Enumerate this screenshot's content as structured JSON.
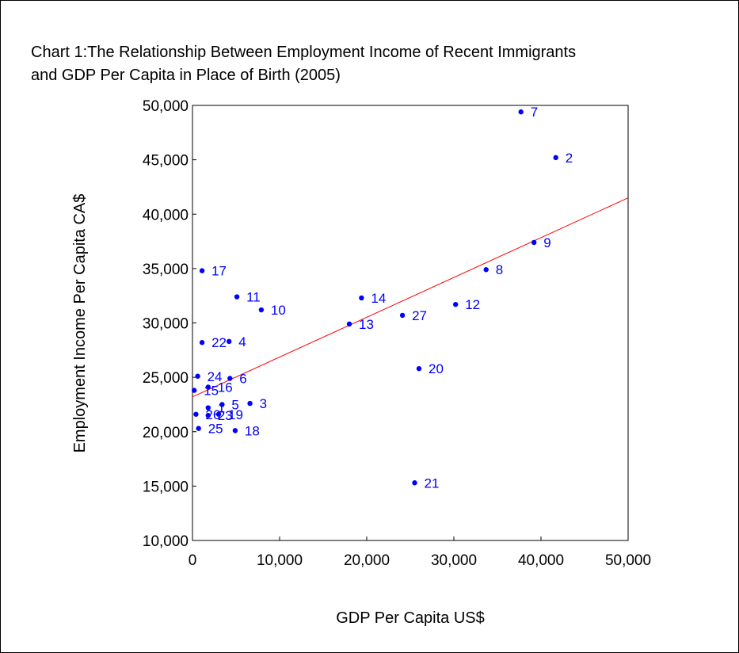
{
  "chart_data": {
    "type": "scatter",
    "title_line1": "Chart 1:The Relationship Between Employment Income of Recent Immigrants",
    "title_line2": "and GDP Per Capita in Place of Birth (2005)",
    "xlabel": "GDP Per Capita US$",
    "ylabel": "Employment Income Per Capita CA$",
    "xlim": [
      0,
      50000
    ],
    "ylim": [
      10000,
      50000
    ],
    "xticks": [
      "0",
      "10,000",
      "20,000",
      "30,000",
      "40,000",
      "50,000"
    ],
    "yticks": [
      "10,000",
      "15,000",
      "20,000",
      "25,000",
      "30,000",
      "35,000",
      "40,000",
      "45,000",
      "50,000"
    ],
    "grid": false,
    "point_color": "#0000ff",
    "label_color": "#0000ff",
    "fit_line_color": "#ff0000",
    "fit_line": {
      "x": [
        0,
        50000
      ],
      "y": [
        23200,
        41500
      ]
    },
    "points": [
      {
        "label": "7",
        "x": 37700,
        "y": 49400
      },
      {
        "label": "2",
        "x": 41700,
        "y": 45200
      },
      {
        "label": "9",
        "x": 39200,
        "y": 37400
      },
      {
        "label": "8",
        "x": 33700,
        "y": 34900
      },
      {
        "label": "17",
        "x": 1100,
        "y": 34800
      },
      {
        "label": "11",
        "x": 5100,
        "y": 32400
      },
      {
        "label": "14",
        "x": 19400,
        "y": 32300
      },
      {
        "label": "12",
        "x": 30200,
        "y": 31700
      },
      {
        "label": "10",
        "x": 7900,
        "y": 31200
      },
      {
        "label": "27",
        "x": 24100,
        "y": 30700
      },
      {
        "label": "13",
        "x": 18000,
        "y": 29900
      },
      {
        "label": "22",
        "x": 1100,
        "y": 28200
      },
      {
        "label": "4",
        "x": 4200,
        "y": 28300
      },
      {
        "label": "20",
        "x": 26000,
        "y": 25800
      },
      {
        "label": "24",
        "x": 600,
        "y": 25100
      },
      {
        "label": "6",
        "x": 4300,
        "y": 24900
      },
      {
        "label": "15",
        "x": 200,
        "y": 23800
      },
      {
        "label": "16",
        "x": 1800,
        "y": 24100
      },
      {
        "label": "3",
        "x": 6600,
        "y": 22600
      },
      {
        "label": "5",
        "x": 3400,
        "y": 22500
      },
      {
        "label": "1",
        "x": 1800,
        "y": 22200
      },
      {
        "label": "19",
        "x": 3000,
        "y": 21600
      },
      {
        "label": "26",
        "x": 400,
        "y": 21600
      },
      {
        "label": "23",
        "x": 1800,
        "y": 21500
      },
      {
        "label": "25",
        "x": 700,
        "y": 20300
      },
      {
        "label": "18",
        "x": 4900,
        "y": 20100
      },
      {
        "label": "21",
        "x": 25500,
        "y": 15300
      }
    ]
  }
}
